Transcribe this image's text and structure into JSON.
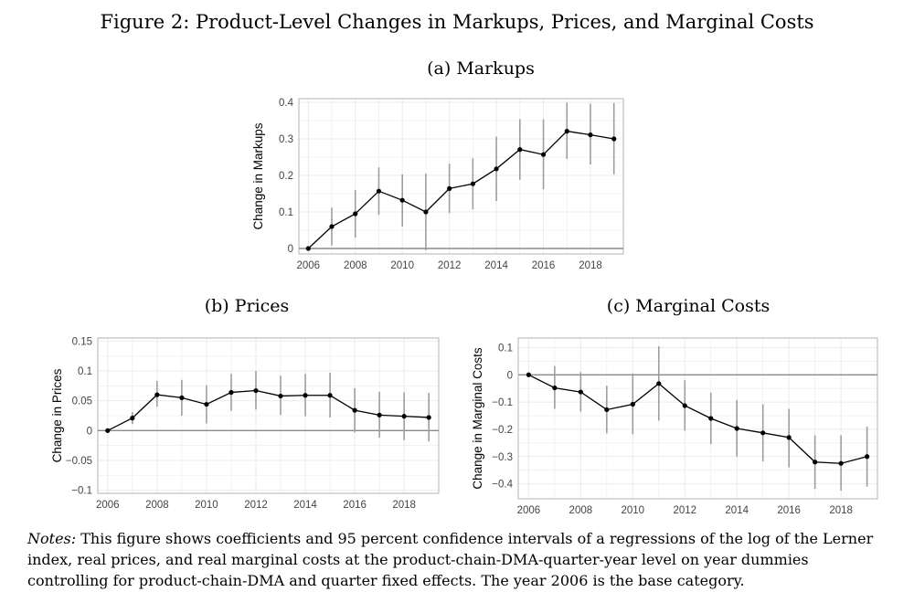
{
  "figure_title": "Figure 2: Product-Level Changes in Markups, Prices, and Marginal Costs",
  "panels": {
    "a": {
      "title": "(a) Markups"
    },
    "b": {
      "title": "(b) Prices"
    },
    "c": {
      "title": "(c) Marginal Costs"
    }
  },
  "notes": {
    "label": "Notes:",
    "text": "This figure shows coefficients and 95 percent confidence intervals of a regressions of the log of the Lerner index, real prices, and real marginal costs at the product-chain-DMA-quarter-year level on year dummies controlling for product-chain-DMA and quarter fixed effects. The year 2006 is the base category."
  },
  "colors": {
    "line": "#000000",
    "ci": "#9e9e9e",
    "zero": "#8a8a8a",
    "grid": "#ebebeb",
    "border": "#b3b3b3"
  },
  "chart_data": [
    {
      "id": "a",
      "type": "line",
      "title": "(a) Markups",
      "xlabel": "",
      "ylabel": "Change in Markups",
      "x": [
        2006,
        2007,
        2008,
        2009,
        2010,
        2011,
        2012,
        2013,
        2014,
        2015,
        2016,
        2017,
        2018,
        2019
      ],
      "y": [
        0,
        0.06,
        0.095,
        0.157,
        0.132,
        0.1,
        0.164,
        0.177,
        0.218,
        0.271,
        0.257,
        0.321,
        0.311,
        0.3
      ],
      "ci_low": [
        0,
        0.008,
        0.03,
        0.092,
        0.06,
        -0.005,
        0.097,
        0.107,
        0.13,
        0.188,
        0.162,
        0.245,
        0.23,
        0.203
      ],
      "ci_high": [
        0,
        0.112,
        0.16,
        0.222,
        0.203,
        0.205,
        0.232,
        0.247,
        0.306,
        0.354,
        0.354,
        0.399,
        0.396,
        0.398
      ],
      "xlim": [
        2005.6,
        2019.4
      ],
      "ylim": [
        -0.015,
        0.41
      ],
      "xticks": [
        "2006",
        "2008",
        "2010",
        "2012",
        "2014",
        "2016",
        "2018"
      ],
      "yticks": [
        "0",
        "0.1",
        "0.2",
        "0.3",
        "0.4"
      ],
      "grid": true,
      "zero_line": true
    },
    {
      "id": "b",
      "type": "line",
      "title": "(b) Prices",
      "xlabel": "",
      "ylabel": "Change in Prices",
      "x": [
        2006,
        2007,
        2008,
        2009,
        2010,
        2011,
        2012,
        2013,
        2014,
        2015,
        2016,
        2017,
        2018,
        2019
      ],
      "y": [
        0,
        0.021,
        0.06,
        0.055,
        0.044,
        0.064,
        0.067,
        0.058,
        0.059,
        0.059,
        0.034,
        0.026,
        0.024,
        0.022
      ],
      "ci_low": [
        0,
        0.011,
        0.04,
        0.025,
        0.012,
        0.033,
        0.035,
        0.026,
        0.024,
        0.022,
        -0.003,
        -0.012,
        -0.016,
        -0.018
      ],
      "ci_high": [
        0,
        0.031,
        0.083,
        0.085,
        0.076,
        0.095,
        0.1,
        0.092,
        0.095,
        0.097,
        0.071,
        0.065,
        0.064,
        0.063
      ],
      "xlim": [
        2005.6,
        2019.4
      ],
      "ylim": [
        -0.105,
        0.155
      ],
      "xticks": [
        "2006",
        "2008",
        "2010",
        "2012",
        "2014",
        "2016",
        "2018"
      ],
      "yticks": [
        "−0.1",
        "−0.05",
        "0",
        "0.05",
        "0.1",
        "0.15"
      ],
      "grid": true,
      "zero_line": true
    },
    {
      "id": "c",
      "type": "line",
      "title": "(c) Marginal Costs",
      "xlabel": "",
      "ylabel": "Change in Marginal Costs",
      "x": [
        2006,
        2007,
        2008,
        2009,
        2010,
        2011,
        2012,
        2013,
        2014,
        2015,
        2016,
        2017,
        2018,
        2019
      ],
      "y": [
        0,
        -0.048,
        -0.063,
        -0.128,
        -0.108,
        -0.032,
        -0.113,
        -0.16,
        -0.197,
        -0.213,
        -0.23,
        -0.32,
        -0.325,
        -0.3
      ],
      "ci_low": [
        0,
        -0.125,
        -0.135,
        -0.215,
        -0.218,
        -0.168,
        -0.205,
        -0.255,
        -0.3,
        -0.318,
        -0.34,
        -0.418,
        -0.425,
        -0.41
      ],
      "ci_high": [
        0,
        0.032,
        0.01,
        -0.04,
        0.005,
        0.105,
        -0.02,
        -0.065,
        -0.093,
        -0.108,
        -0.125,
        -0.222,
        -0.222,
        -0.19
      ],
      "xlim": [
        2005.6,
        2019.4
      ],
      "ylim": [
        -0.455,
        0.135
      ],
      "xticks": [
        "2006",
        "2008",
        "2010",
        "2012",
        "2014",
        "2016",
        "2018"
      ],
      "yticks": [
        "−0.4",
        "−0.3",
        "−0.2",
        "−0.1",
        "0",
        "0.1"
      ],
      "grid": true,
      "zero_line": true
    }
  ]
}
